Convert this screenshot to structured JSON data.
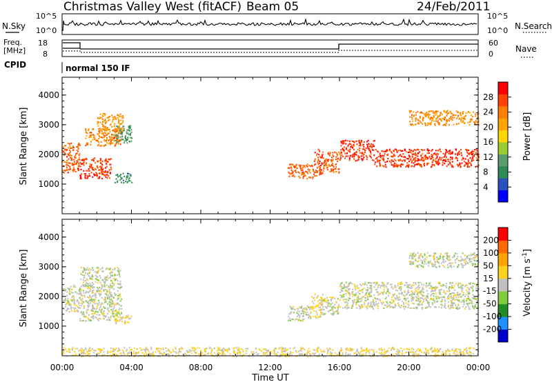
{
  "header": {
    "title": "Christmas Valley West (fitACF)",
    "beam": "Beam 05",
    "date": "24/Feb/2011"
  },
  "panels": {
    "nsky": {
      "left_label": "N.Sky",
      "right_label": "N.Search",
      "left_ticks": [
        "10^5",
        "10^0"
      ],
      "right_ticks": [
        "10^5",
        "10^0"
      ]
    },
    "freq": {
      "left_label_1": "Freq.",
      "left_label_2": "[MHz]",
      "right_label": "Nave",
      "left_ticks": [
        "18",
        "8"
      ],
      "right_ticks": [
        "60",
        "0"
      ]
    },
    "cpid": {
      "label": "CPID",
      "mode": "normal 150 IF"
    }
  },
  "colorbars": {
    "power": {
      "label": "Power [dB]",
      "ticks": [
        "28",
        "24",
        "20",
        "16",
        "12",
        "8",
        "4"
      ],
      "colors": [
        "#0000ff",
        "#2a52be",
        "#2e8b57",
        "#5a9e6f",
        "#9acd32",
        "#ffd700",
        "#ffa500",
        "#ff7f00",
        "#ff4500",
        "#ff0000"
      ]
    },
    "velocity": {
      "label": "Velocity [m s",
      "label_sup": "-1",
      "label_end": "]",
      "ticks": [
        "200",
        "100",
        "50",
        "15",
        "-15",
        "-50",
        "-100",
        "-200"
      ],
      "colors": [
        "#0000cd",
        "#1e90ff",
        "#228b22",
        "#7fcc3f",
        "#c0c0c0",
        "#ffd21f",
        "#ffa500",
        "#ff6a00",
        "#ff0000"
      ]
    }
  },
  "chart_data": [
    {
      "type": "heatmap",
      "name": "power",
      "ylabel": "Slant Range [km]",
      "ylim": [
        0,
        4600
      ],
      "xlim": [
        0,
        24
      ],
      "yticks": [
        1000,
        2000,
        3000,
        4000
      ],
      "value_range": [
        0,
        32
      ],
      "regions": [
        {
          "t": [
            0.0,
            1.0
          ],
          "r": [
            1400,
            2400
          ],
          "v": 26
        },
        {
          "t": [
            1.0,
            2.8
          ],
          "r": [
            1200,
            1900
          ],
          "v": 28
        },
        {
          "t": [
            1.3,
            3.4
          ],
          "r": [
            2300,
            2900
          ],
          "v": 24
        },
        {
          "t": [
            2.0,
            3.5
          ],
          "r": [
            2700,
            3400
          ],
          "v": 22
        },
        {
          "t": [
            3.0,
            4.0
          ],
          "r": [
            2400,
            3000
          ],
          "v": 10
        },
        {
          "t": [
            3.0,
            4.0
          ],
          "r": [
            1050,
            1400
          ],
          "v": 9
        },
        {
          "t": [
            13.0,
            14.5
          ],
          "r": [
            1200,
            1700
          ],
          "v": 26
        },
        {
          "t": [
            14.5,
            15.0
          ],
          "r": [
            1300,
            2200
          ],
          "v": 27
        },
        {
          "t": [
            15.0,
            16.0
          ],
          "r": [
            1400,
            2100
          ],
          "v": 26
        },
        {
          "t": [
            16.0,
            18.0
          ],
          "r": [
            1800,
            2500
          ],
          "v": 28
        },
        {
          "t": [
            18.0,
            24.0
          ],
          "r": [
            1600,
            2200
          ],
          "v": 28
        },
        {
          "t": [
            20.0,
            24.0
          ],
          "r": [
            3000,
            3500
          ],
          "v": 23
        }
      ]
    },
    {
      "type": "heatmap",
      "name": "velocity",
      "ylabel": "Slant Range [km]",
      "xlabel": "Time UT",
      "ylim": [
        0,
        4600
      ],
      "xlim": [
        0,
        24
      ],
      "yticks": [
        1000,
        2000,
        3000,
        4000
      ],
      "xticks": [
        "00:00",
        "04:00",
        "08:00",
        "12:00",
        "16:00",
        "20:00",
        "00:00"
      ],
      "value_range": [
        -250,
        250
      ],
      "regions": [
        {
          "t": [
            0.0,
            1.0
          ],
          "r": [
            1500,
            2400
          ],
          "v": 0
        },
        {
          "t": [
            1.0,
            3.4
          ],
          "r": [
            1200,
            3000
          ],
          "v": 0
        },
        {
          "t": [
            3.0,
            4.0
          ],
          "r": [
            1100,
            1400
          ],
          "v": 30
        },
        {
          "t": [
            13.0,
            14.3
          ],
          "r": [
            1200,
            1700
          ],
          "v": 0
        },
        {
          "t": [
            14.3,
            15.0
          ],
          "r": [
            1300,
            2100
          ],
          "v": 30
        },
        {
          "t": [
            15.0,
            16.0
          ],
          "r": [
            1400,
            2000
          ],
          "v": 0
        },
        {
          "t": [
            16.0,
            24.0
          ],
          "r": [
            1600,
            2500
          ],
          "v": 0
        },
        {
          "t": [
            20.0,
            24.0
          ],
          "r": [
            3000,
            3500
          ],
          "v": 0
        },
        {
          "t": [
            0.0,
            24.0
          ],
          "r": [
            0,
            300
          ],
          "v": 35
        }
      ]
    }
  ]
}
